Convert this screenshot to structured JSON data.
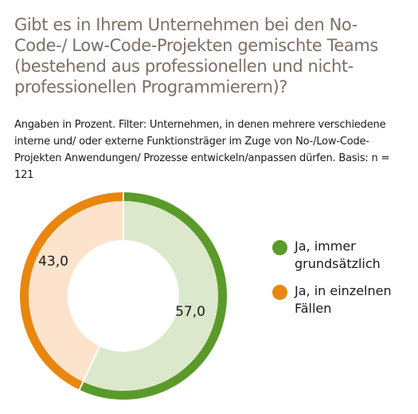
{
  "title": "Gibt es in Ihrem Unternehmen bei den No-Code-/ Low-Code-Projekten gemischte Teams (bestehend aus professionellen und nicht-professionellen Programmierern)?",
  "subtitle": "Angaben in Prozent. Filter: Unternehmen, in denen mehrere verschiedene interne und/ oder externe Funktionsträger im Zuge von No-/Low-Code-Projekten Anwendungen/ Prozesse entwickeln/anpassen dürfen. Basis: n = 121",
  "chart_data": {
    "type": "pie",
    "categories": [
      "Ja, immer grundsätzlich",
      "Ja, in einzelnen Fällen"
    ],
    "values": [
      57.0,
      43.0
    ],
    "data_labels": [
      "57,0",
      "43,0"
    ],
    "colors": [
      "#5a9a2a",
      "#e8860f"
    ],
    "fill_colors": [
      "#dce8cb",
      "#fde3cc"
    ],
    "legend_placement": "right"
  },
  "legend": [
    {
      "label": "Ja, immer grundsätzlich",
      "color": "#5a9a2a"
    },
    {
      "label": "Ja, in einzelnen Fällen",
      "color": "#e8860f"
    }
  ]
}
